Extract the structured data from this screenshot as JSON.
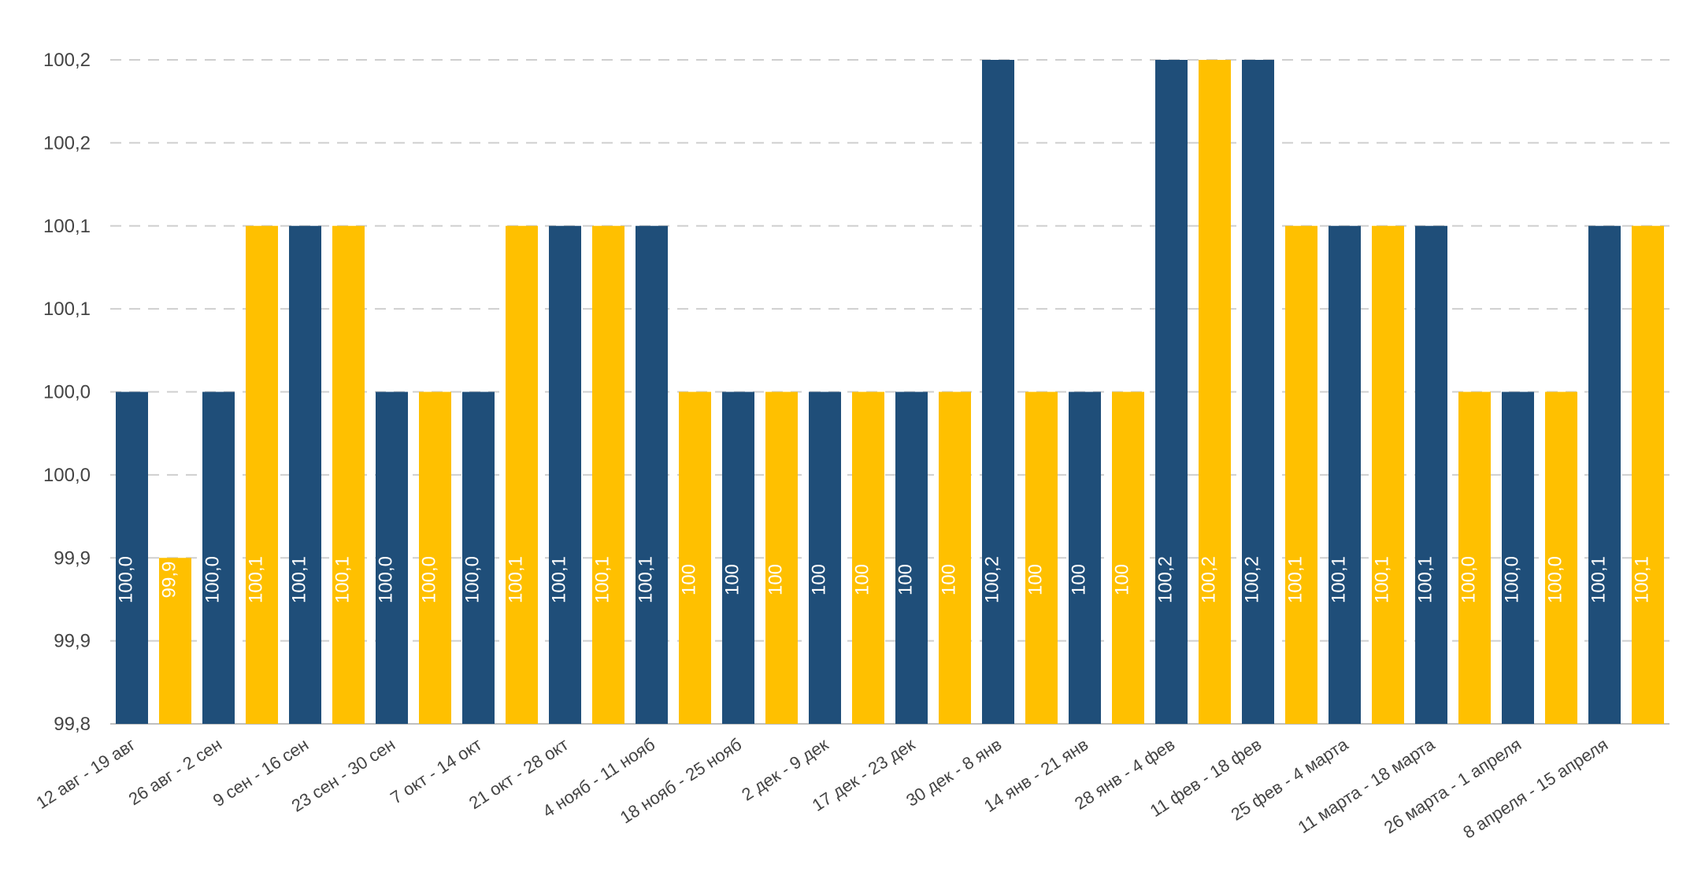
{
  "chart_data": {
    "type": "bar",
    "title": "",
    "xlabel": "",
    "ylabel": "",
    "ylim": [
      99.8,
      100.2
    ],
    "y_tick_labels": [
      "99,8",
      "99,9",
      "99,9",
      "100,0",
      "100,0",
      "100,1",
      "100,1",
      "100,2",
      "100,2"
    ],
    "colors": {
      "navy": "#1f4e79",
      "yellow": "#ffc000",
      "label": "#ffffff",
      "grid": "#cfcfcf",
      "text": "#444444"
    },
    "x_category_labels": [
      "12 авг - 19 авг",
      "26 авг - 2 сен",
      "9 сен - 16 сен",
      "23 сен - 30 сен",
      "7 окт - 14 окт",
      "21 окт - 28 окт",
      "4 нояб - 11 нояб",
      "18 нояб - 25 нояб",
      "2 дек - 9 дек",
      "17 дек - 23 дек",
      "30 дек - 8 янв",
      "14 янв - 21 янв",
      "28 янв - 4 фев",
      "11 фев - 18 фев",
      "25 фев - 4 марта",
      "11 марта - 18 марта",
      "26 марта - 1 апреля",
      "8 апреля - 15 апреля"
    ],
    "bars": [
      {
        "value": 100.0,
        "label": "100,0",
        "color": "navy"
      },
      {
        "value": 99.9,
        "label": "99,9",
        "color": "yellow"
      },
      {
        "value": 100.0,
        "label": "100,0",
        "color": "navy"
      },
      {
        "value": 100.1,
        "label": "100,1",
        "color": "yellow"
      },
      {
        "value": 100.1,
        "label": "100,1",
        "color": "navy"
      },
      {
        "value": 100.1,
        "label": "100,1",
        "color": "yellow"
      },
      {
        "value": 100.0,
        "label": "100,0",
        "color": "navy"
      },
      {
        "value": 100.0,
        "label": "100,0",
        "color": "yellow"
      },
      {
        "value": 100.0,
        "label": "100,0",
        "color": "navy"
      },
      {
        "value": 100.1,
        "label": "100,1",
        "color": "yellow"
      },
      {
        "value": 100.1,
        "label": "100,1",
        "color": "navy"
      },
      {
        "value": 100.1,
        "label": "100,1",
        "color": "yellow"
      },
      {
        "value": 100.1,
        "label": "100,1",
        "color": "navy"
      },
      {
        "value": 100.0,
        "label": "100",
        "color": "yellow"
      },
      {
        "value": 100.0,
        "label": "100",
        "color": "navy"
      },
      {
        "value": 100.0,
        "label": "100",
        "color": "yellow"
      },
      {
        "value": 100.0,
        "label": "100",
        "color": "navy"
      },
      {
        "value": 100.0,
        "label": "100",
        "color": "yellow"
      },
      {
        "value": 100.0,
        "label": "100",
        "color": "navy"
      },
      {
        "value": 100.0,
        "label": "100",
        "color": "yellow"
      },
      {
        "value": 100.2,
        "label": "100,2",
        "color": "navy"
      },
      {
        "value": 100.0,
        "label": "100",
        "color": "yellow"
      },
      {
        "value": 100.0,
        "label": "100",
        "color": "navy"
      },
      {
        "value": 100.0,
        "label": "100",
        "color": "yellow"
      },
      {
        "value": 100.2,
        "label": "100,2",
        "color": "navy"
      },
      {
        "value": 100.2,
        "label": "100,2",
        "color": "yellow"
      },
      {
        "value": 100.2,
        "label": "100,2",
        "color": "navy"
      },
      {
        "value": 100.1,
        "label": "100,1",
        "color": "yellow"
      },
      {
        "value": 100.1,
        "label": "100,1",
        "color": "navy"
      },
      {
        "value": 100.1,
        "label": "100,1",
        "color": "yellow"
      },
      {
        "value": 100.1,
        "label": "100,1",
        "color": "navy"
      },
      {
        "value": 100.0,
        "label": "100,0",
        "color": "yellow"
      },
      {
        "value": 100.0,
        "label": "100,0",
        "color": "navy"
      },
      {
        "value": 100.0,
        "label": "100,0",
        "color": "yellow"
      },
      {
        "value": 100.1,
        "label": "100,1",
        "color": "navy"
      },
      {
        "value": 100.1,
        "label": "100,1",
        "color": "yellow"
      }
    ]
  }
}
